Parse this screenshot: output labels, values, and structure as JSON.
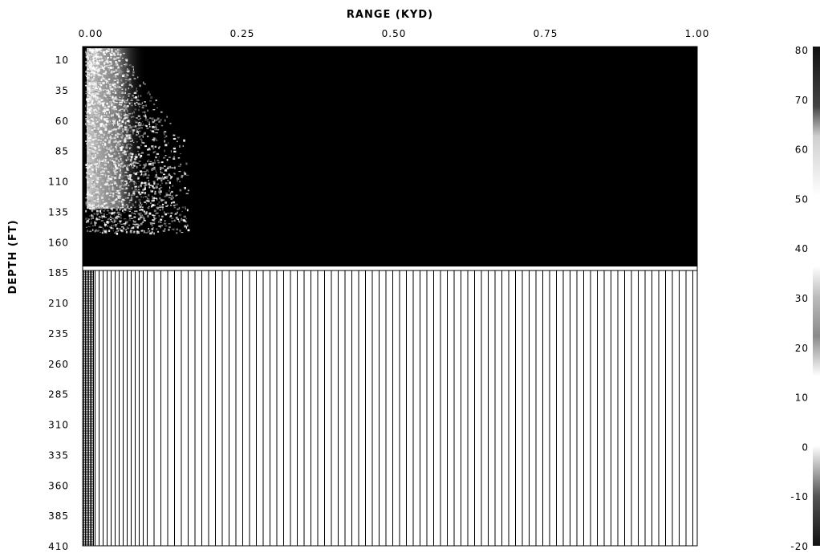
{
  "chart_data": {
    "type": "heatmap",
    "xlabel": "RANGE (KYD)",
    "ylabel": "DEPTH (FT)",
    "x_ticks": [
      "0.00",
      "0.25",
      "0.50",
      "0.75",
      "1.00"
    ],
    "x_tick_values": [
      0.0,
      0.25,
      0.5,
      0.75,
      1.0
    ],
    "xlim": [
      0.0,
      1.0
    ],
    "y_ticks": [
      "10",
      "35",
      "60",
      "85",
      "110",
      "135",
      "160",
      "185",
      "210",
      "235",
      "260",
      "285",
      "310",
      "335",
      "360",
      "385",
      "410"
    ],
    "y_tick_values": [
      10,
      35,
      60,
      85,
      110,
      135,
      160,
      185,
      210,
      235,
      260,
      285,
      310,
      335,
      360,
      385,
      410
    ],
    "ylim": [
      0,
      410
    ],
    "water_bottom_depth": 185,
    "colorbar": {
      "ticks": [
        "80",
        "70",
        "60",
        "50",
        "40",
        "30",
        "20",
        "10",
        "0",
        "-10",
        "-20"
      ],
      "tick_values": [
        80,
        70,
        60,
        50,
        40,
        30,
        20,
        10,
        0,
        -10,
        -20
      ],
      "range": [
        -20,
        80
      ]
    },
    "colors": {
      "background": "#000000",
      "sediment_lines": "#000000",
      "sediment_fill": "#ffffff"
    }
  }
}
